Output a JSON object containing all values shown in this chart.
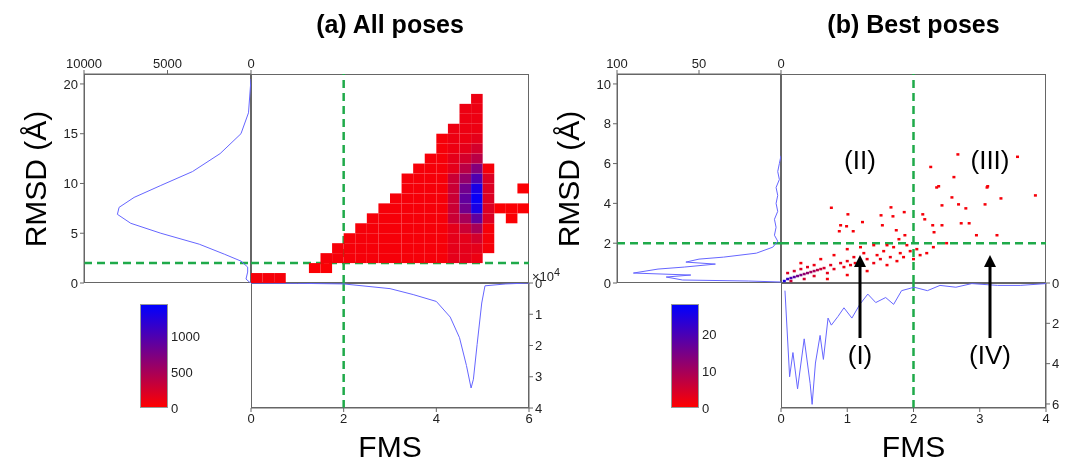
{
  "chart_data": [
    {
      "type": "line",
      "ylabel": "RMSD (Å)",
      "marker": "none",
      "color": "#6666ff",
      "x": [
        0,
        150,
        600,
        1850,
        3500,
        5400,
        7000,
        7900,
        8000,
        7200,
        5400,
        3100,
        1600,
        600,
        200,
        200,
        300,
        100,
        0
      ],
      "values": [
        20.5,
        17.1,
        15,
        13,
        11.2,
        9.8,
        8.6,
        7.6,
        6.9,
        6,
        5,
        3.9,
        2.9,
        2.2,
        1.6,
        1.1,
        0.4,
        0.1,
        0
      ],
      "xlim": [
        10000,
        0
      ],
      "xticks": [
        10000,
        5000,
        0
      ],
      "ylim": [
        0,
        21
      ],
      "yticks": [
        0,
        5,
        10,
        15,
        20
      ],
      "ref_lines": [
        {
          "axis": "y",
          "value": 2,
          "color": "#1faa4a",
          "line_style": "dashed"
        }
      ]
    },
    {
      "type": "scatter",
      "title": "(a) All poses",
      "marker": "square",
      "tick_labels": false,
      "xlim": [
        0,
        6
      ],
      "ylim": [
        0,
        21
      ],
      "clim": [
        0,
        1450
      ],
      "cticks": [
        0,
        500,
        1000
      ],
      "x": [
        1.625,
        1.875,
        2.125,
        2.375,
        2.625,
        2.875,
        3.125,
        3.375,
        3.625,
        3.875,
        4.125,
        4.375,
        4.625,
        4.875,
        1.875,
        2.125,
        2.375,
        2.625,
        2.875,
        3.125,
        3.375,
        3.625,
        3.875,
        4.125,
        4.375,
        4.625,
        4.875,
        5.125,
        2.125,
        2.375,
        2.625,
        2.875,
        3.125,
        3.375,
        3.625,
        3.875,
        4.125,
        4.375,
        4.625,
        4.875,
        5.125,
        2.375,
        2.625,
        2.875,
        3.125,
        3.375,
        3.625,
        3.875,
        4.125,
        4.375,
        4.625,
        4.875,
        5.125,
        2.625,
        2.875,
        3.125,
        3.375,
        3.625,
        3.875,
        4.125,
        4.375,
        4.625,
        4.875,
        5.125,
        2.875,
        3.125,
        3.375,
        3.625,
        3.875,
        4.125,
        4.375,
        4.625,
        4.875,
        5.125,
        3.125,
        3.375,
        3.625,
        3.875,
        4.125,
        4.375,
        4.625,
        4.875,
        5.125,
        3.375,
        3.625,
        3.875,
        4.125,
        4.375,
        4.625,
        4.875,
        5.125,
        3.375,
        3.625,
        3.875,
        4.125,
        4.375,
        4.625,
        4.875,
        5.125,
        3.625,
        3.875,
        4.125,
        4.375,
        4.625,
        4.875,
        5.125,
        3.875,
        4.125,
        4.375,
        4.625,
        4.875,
        4.125,
        4.375,
        4.625,
        4.875,
        4.125,
        4.375,
        4.625,
        4.875,
        4.375,
        4.625,
        4.875,
        4.625,
        4.875,
        4.625,
        4.875,
        4.875,
        0.125,
        0.375,
        0.625,
        1.375,
        1.625,
        5.375,
        5.625,
        5.875,
        5.875,
        5.625
      ],
      "values": [
        2.5,
        2.5,
        2.5,
        2.5,
        2.5,
        2.5,
        2.5,
        2.5,
        2.5,
        2.5,
        2.5,
        2.5,
        2.5,
        2.5,
        3.5,
        3.5,
        3.5,
        3.5,
        3.5,
        3.5,
        3.5,
        3.5,
        3.5,
        3.5,
        3.5,
        3.5,
        3.5,
        3.5,
        4.5,
        4.5,
        4.5,
        4.5,
        4.5,
        4.5,
        4.5,
        4.5,
        4.5,
        4.5,
        4.5,
        4.5,
        4.5,
        5.5,
        5.5,
        5.5,
        5.5,
        5.5,
        5.5,
        5.5,
        5.5,
        5.5,
        5.5,
        5.5,
        5.5,
        6.5,
        6.5,
        6.5,
        6.5,
        6.5,
        6.5,
        6.5,
        6.5,
        6.5,
        6.5,
        6.5,
        7.5,
        7.5,
        7.5,
        7.5,
        7.5,
        7.5,
        7.5,
        7.5,
        7.5,
        7.5,
        8.5,
        8.5,
        8.5,
        8.5,
        8.5,
        8.5,
        8.5,
        8.5,
        8.5,
        9.5,
        9.5,
        9.5,
        9.5,
        9.5,
        9.5,
        9.5,
        9.5,
        10.5,
        10.5,
        10.5,
        10.5,
        10.5,
        10.5,
        10.5,
        10.5,
        11.5,
        11.5,
        11.5,
        11.5,
        11.5,
        11.5,
        11.5,
        12.5,
        12.5,
        12.5,
        12.5,
        12.5,
        13.5,
        13.5,
        13.5,
        13.5,
        14.5,
        14.5,
        14.5,
        14.5,
        15.5,
        15.5,
        15.5,
        16.5,
        16.5,
        17.5,
        17.5,
        18.5,
        0.5,
        0.5,
        0.5,
        1.5,
        1.5,
        7.5,
        7.5,
        7.5,
        9.5,
        6.5
      ],
      "cvalues": [
        50,
        50,
        50,
        50,
        50,
        50,
        50,
        50,
        50,
        50,
        50,
        150,
        150,
        100,
        50,
        50,
        50,
        50,
        50,
        50,
        50,
        50,
        50,
        50,
        150,
        150,
        150,
        50,
        50,
        50,
        50,
        50,
        50,
        50,
        50,
        50,
        50,
        150,
        150,
        250,
        50,
        50,
        50,
        50,
        50,
        50,
        50,
        50,
        50,
        150,
        300,
        500,
        50,
        50,
        50,
        50,
        50,
        50,
        50,
        50,
        300,
        500,
        900,
        200,
        50,
        50,
        50,
        50,
        50,
        50,
        300,
        800,
        1300,
        200,
        50,
        50,
        50,
        50,
        50,
        300,
        900,
        1400,
        200,
        50,
        50,
        50,
        50,
        300,
        800,
        1300,
        200,
        50,
        50,
        50,
        50,
        300,
        600,
        1000,
        200,
        50,
        50,
        50,
        150,
        400,
        700,
        50,
        50,
        50,
        150,
        250,
        400,
        50,
        100,
        150,
        250,
        50,
        100,
        100,
        150,
        100,
        100,
        100,
        100,
        100,
        100,
        100,
        100,
        50,
        50,
        50,
        20,
        20,
        20,
        20,
        20,
        20,
        20
      ],
      "ref_lines": [
        {
          "axis": "x",
          "value": 2,
          "color": "#1faa4a",
          "line_style": "dashed"
        },
        {
          "axis": "y",
          "value": 2,
          "color": "#1faa4a",
          "line_style": "dashed"
        }
      ]
    },
    {
      "type": "line",
      "xlabel": "FMS",
      "marker": "none",
      "color": "#6666ff",
      "annotations": [
        "×10$^{4}$"
      ],
      "x": [
        0,
        1,
        2,
        3,
        3.5,
        4,
        4.3,
        4.5,
        4.65,
        4.75,
        4.8,
        4.88,
        4.98,
        5.05,
        5.5,
        6
      ],
      "values": [
        0,
        0.01,
        0.03,
        0.18,
        0.37,
        0.59,
        1.09,
        1.75,
        2.64,
        3.36,
        3.08,
        1.97,
        0.64,
        0.09,
        0.03,
        0
      ],
      "xlim": [
        0,
        6
      ],
      "xticks": [
        0,
        2,
        4,
        6
      ],
      "ylim": [
        4,
        0
      ],
      "yticks": [
        0,
        1,
        2,
        3,
        4
      ],
      "ref_lines": [
        {
          "axis": "x",
          "value": 2,
          "color": "#1faa4a",
          "line_style": "dashed"
        }
      ]
    },
    {
      "type": "line",
      "ylabel": "RMSD (Å)",
      "marker": "none",
      "color": "#6666ff",
      "x": [
        0,
        1,
        2,
        1,
        3,
        2,
        3,
        2,
        4,
        3,
        4,
        2,
        5,
        15,
        35,
        50,
        58,
        40,
        59,
        75,
        90,
        55,
        70,
        60,
        20,
        0
      ],
      "values": [
        6.4,
        6.0,
        5.6,
        5.2,
        4.8,
        4.4,
        4.0,
        3.6,
        3.2,
        2.8,
        2.4,
        2.1,
        1.8,
        1.5,
        1.3,
        1.2,
        1.05,
        0.95,
        0.8,
        0.7,
        0.5,
        0.4,
        0.3,
        0.15,
        0.1,
        0.05
      ],
      "xlim": [
        100,
        0
      ],
      "xticks": [
        100,
        50,
        0
      ],
      "ylim": [
        0,
        10.5
      ],
      "yticks": [
        0,
        2,
        4,
        6,
        8,
        10
      ],
      "ref_lines": [
        {
          "axis": "y",
          "value": 2,
          "color": "#1faa4a",
          "line_style": "dashed"
        }
      ]
    },
    {
      "type": "scatter",
      "title": "(b) Best poses",
      "marker": "square",
      "tick_labels": false,
      "xlim": [
        0,
        4
      ],
      "ylim": [
        0,
        10.5
      ],
      "clim": [
        0,
        28
      ],
      "cticks": [
        0,
        10,
        20
      ],
      "annotations": [
        "(II)",
        "(III)"
      ],
      "x": [
        0.05,
        0.1,
        0.15,
        0.2,
        0.25,
        0.3,
        0.35,
        0.4,
        0.45,
        0.5,
        0.55,
        0.6,
        0.65,
        0.1,
        0.2,
        0.3,
        0.15,
        0.35,
        0.5,
        0.4,
        0.7,
        0.75,
        0.8,
        0.9,
        0.95,
        1.0,
        1.05,
        1.1,
        1.12,
        1.25,
        1.3,
        1.4,
        1.45,
        1.5,
        1.55,
        1.6,
        1.65,
        1.7,
        1.75,
        1.8,
        1.85,
        1.9,
        1.95,
        2.0,
        2.05,
        2.1,
        2.2,
        2.3,
        2.5,
        0.6,
        0.8,
        1.0,
        1.2,
        1.4,
        0.3,
        0.5,
        0.7,
        1.0,
        1.3,
        1.6,
        0.76,
        1.01,
        0.9,
        0.88,
        0.99,
        1.09,
        1.23,
        1.51,
        1.66,
        1.69,
        1.53,
        1.74,
        1.86,
        1.87,
        1.78,
        2.14,
        2.17,
        2.29,
        2.31,
        2.43,
        2.35,
        2.58,
        2.68,
        2.43,
        2.72,
        2.79,
        2.84,
        2.95,
        3.08,
        3.11,
        3.32,
        3.26,
        3.84,
        2.67,
        3.57,
        2.26,
        2.61,
        2.38,
        3.12
      ],
      "values": [
        0.1,
        0.2,
        0.25,
        0.3,
        0.35,
        0.4,
        0.45,
        0.5,
        0.55,
        0.6,
        0.65,
        0.7,
        0.75,
        0.5,
        0.6,
        0.7,
        0.1,
        0.2,
        0.35,
        0.8,
        0.5,
        0.9,
        0.7,
        1.0,
        0.8,
        1.1,
        0.9,
        1.3,
        1.0,
        1.5,
        1.2,
        1.0,
        1.4,
        1.2,
        1.6,
        0.9,
        1.3,
        1.8,
        1.1,
        1.5,
        1.3,
        1.9,
        1.6,
        1.2,
        1.7,
        1.4,
        1.5,
        1.8,
        2.0,
        1.2,
        1.4,
        1.7,
        1.8,
        1.9,
        1.0,
        0.9,
        0.2,
        0.4,
        0.6,
        1.9,
        3.78,
        3.45,
        2.9,
        2.6,
        2.85,
        2.6,
        3.06,
        3.4,
        3.8,
        3.35,
        2.9,
        2.65,
        3.56,
        2.4,
        2.2,
        3.45,
        3.2,
        2.9,
        2.55,
        3.9,
        4.8,
        4.3,
        3.95,
        2.9,
        3.0,
        3.75,
        3.0,
        2.4,
        3.95,
        4.8,
        4.25,
        2.4,
        4.4,
        6.46,
        6.34,
        5.83,
        5.32,
        4.86,
        4.86
      ],
      "cvalues": [
        25,
        22,
        20,
        18,
        15,
        14,
        12,
        12,
        10,
        10,
        8,
        6,
        5,
        4,
        5,
        4,
        6,
        5,
        4,
        3,
        3,
        3,
        3,
        3,
        2,
        2,
        2,
        2,
        2,
        1,
        2,
        2,
        1,
        2,
        1,
        1,
        2,
        1,
        1,
        1,
        1,
        1,
        1,
        1,
        1,
        1,
        1,
        1,
        1,
        1,
        1,
        1,
        1,
        1,
        1,
        2,
        1,
        1,
        1,
        1,
        1,
        1,
        1,
        1,
        1,
        1,
        1,
        1,
        1,
        1,
        1,
        1,
        1,
        1,
        1,
        1,
        1,
        1,
        1,
        1,
        1,
        1,
        1,
        1,
        1,
        1,
        1,
        1,
        1,
        1,
        1,
        1,
        1,
        1,
        1,
        1,
        1,
        1,
        1
      ],
      "ref_lines": [
        {
          "axis": "x",
          "value": 2,
          "color": "#1faa4a",
          "line_style": "dashed"
        },
        {
          "axis": "y",
          "value": 2,
          "color": "#1faa4a",
          "line_style": "dashed"
        }
      ]
    },
    {
      "type": "line",
      "xlabel": "FMS",
      "marker": "none",
      "color": "#6666ff",
      "annotations": [
        "(I)",
        "(IV)"
      ],
      "x": [
        0.06,
        0.13,
        0.18,
        0.25,
        0.35,
        0.44,
        0.47,
        0.52,
        0.59,
        0.64,
        0.71,
        0.76,
        0.86,
        0.95,
        1.07,
        1.19,
        1.31,
        1.43,
        1.58,
        1.7,
        1.82,
        2.01,
        2.21,
        2.4,
        2.64,
        2.88,
        3.27,
        3.61,
        4.0
      ],
      "values": [
        0.38,
        4.65,
        3.45,
        5.25,
        2.77,
        4.99,
        6.02,
        3.97,
        2.6,
        3.79,
        1.74,
        2.09,
        1.66,
        1.23,
        1.74,
        1.06,
        0.55,
        0.97,
        0.72,
        1.06,
        0.38,
        0.21,
        0.38,
        0.12,
        0.21,
        0.03,
        0.12,
        0.12,
        0.03
      ],
      "xlim": [
        0,
        4
      ],
      "xticks": [
        0,
        1,
        2,
        3,
        4
      ],
      "ylim": [
        6.2,
        0
      ],
      "yticks": [
        0,
        2,
        4,
        6
      ],
      "ref_lines": [
        {
          "axis": "x",
          "value": 2,
          "color": "#1faa4a",
          "line_style": "dashed"
        }
      ]
    }
  ]
}
